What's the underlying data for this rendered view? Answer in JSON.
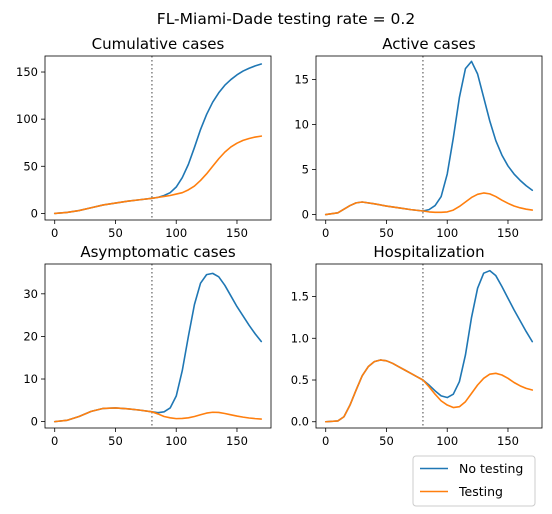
{
  "suptitle": "FL-Miami-Dade testing rate = 0.2",
  "colors": {
    "no_testing": "#1f77b4",
    "testing": "#ff7f0e",
    "vline": "#808080"
  },
  "legend": {
    "placement": "lower-right",
    "entries": [
      "No testing",
      "Testing"
    ]
  },
  "chart_data": [
    {
      "type": "line",
      "title": "Cumulative cases",
      "xlim": [
        -8,
        178
      ],
      "ylim": [
        -7,
        167
      ],
      "xticks": [
        0,
        50,
        100,
        150
      ],
      "yticks": [
        0,
        50,
        100,
        150
      ],
      "xtick_labels": [
        "0",
        "50",
        "100",
        "150"
      ],
      "ytick_labels": [
        "0",
        "50",
        "100",
        "150"
      ],
      "vline_x": 80,
      "x": [
        0,
        10,
        20,
        30,
        40,
        50,
        60,
        70,
        80,
        85,
        90,
        95,
        100,
        105,
        110,
        115,
        120,
        125,
        130,
        135,
        140,
        145,
        150,
        155,
        160,
        165,
        170
      ],
      "series": [
        {
          "name": "No testing",
          "values": [
            0,
            1,
            3,
            6,
            9,
            11,
            13,
            14.5,
            16,
            17,
            19,
            22,
            28,
            38,
            52,
            70,
            89,
            105,
            118,
            128,
            136,
            142,
            147,
            151,
            154,
            156.5,
            158.5
          ]
        },
        {
          "name": "Testing",
          "values": [
            0,
            1,
            3,
            6,
            9,
            11,
            13,
            14.5,
            16,
            17,
            18,
            19,
            20.5,
            22,
            25,
            29,
            35,
            42,
            50,
            58,
            65,
            70.5,
            74.5,
            77.5,
            79.5,
            81,
            82
          ]
        }
      ]
    },
    {
      "type": "line",
      "title": "Active cases",
      "xlim": [
        -8,
        178
      ],
      "ylim": [
        -0.6,
        17.6
      ],
      "xticks": [
        0,
        50,
        100,
        150
      ],
      "yticks": [
        0,
        5,
        10,
        15
      ],
      "xtick_labels": [
        "0",
        "50",
        "100",
        "150"
      ],
      "ytick_labels": [
        "0",
        "5",
        "10",
        "15"
      ],
      "vline_x": 80,
      "x": [
        0,
        10,
        20,
        25,
        30,
        40,
        50,
        60,
        70,
        80,
        85,
        90,
        95,
        100,
        105,
        110,
        115,
        120,
        125,
        130,
        135,
        140,
        145,
        150,
        155,
        160,
        165,
        170
      ],
      "series": [
        {
          "name": "No testing",
          "values": [
            0,
            0.2,
            1.0,
            1.3,
            1.4,
            1.2,
            0.95,
            0.75,
            0.55,
            0.4,
            0.55,
            1.0,
            2.0,
            4.5,
            8.5,
            13,
            16.2,
            17,
            15.6,
            13,
            10.4,
            8.2,
            6.6,
            5.4,
            4.5,
            3.8,
            3.2,
            2.7
          ]
        },
        {
          "name": "Testing",
          "values": [
            0,
            0.2,
            1.0,
            1.3,
            1.4,
            1.2,
            0.95,
            0.75,
            0.55,
            0.4,
            0.3,
            0.25,
            0.25,
            0.3,
            0.5,
            0.9,
            1.4,
            1.9,
            2.25,
            2.4,
            2.3,
            2.0,
            1.6,
            1.25,
            0.95,
            0.75,
            0.6,
            0.5
          ]
        }
      ]
    },
    {
      "type": "line",
      "title": "Asymptomatic cases",
      "xlim": [
        -8,
        178
      ],
      "ylim": [
        -1.5,
        37
      ],
      "xticks": [
        0,
        50,
        100,
        150
      ],
      "yticks": [
        0,
        10,
        20,
        30
      ],
      "xtick_labels": [
        "0",
        "50",
        "100",
        "150"
      ],
      "ytick_labels": [
        "0",
        "10",
        "20",
        "30"
      ],
      "vline_x": 80,
      "x": [
        0,
        10,
        20,
        30,
        40,
        50,
        60,
        70,
        80,
        85,
        90,
        95,
        100,
        105,
        110,
        115,
        120,
        125,
        130,
        135,
        140,
        145,
        150,
        155,
        160,
        165,
        170
      ],
      "series": [
        {
          "name": "No testing",
          "values": [
            0,
            0.3,
            1.2,
            2.4,
            3.1,
            3.2,
            3.0,
            2.7,
            2.3,
            2.1,
            2.3,
            3.2,
            6.0,
            12,
            20,
            27.5,
            32.5,
            34.5,
            34.8,
            34,
            32,
            29.5,
            27,
            24.8,
            22.6,
            20.6,
            18.8
          ]
        },
        {
          "name": "Testing",
          "values": [
            0,
            0.3,
            1.2,
            2.4,
            3.1,
            3.2,
            3.0,
            2.7,
            2.3,
            1.8,
            1.2,
            0.9,
            0.7,
            0.75,
            0.9,
            1.2,
            1.6,
            2.0,
            2.2,
            2.15,
            1.9,
            1.6,
            1.3,
            1.05,
            0.85,
            0.7,
            0.6
          ]
        }
      ]
    },
    {
      "type": "line",
      "title": "Hospitalization",
      "xlim": [
        -8,
        178
      ],
      "ylim": [
        -0.075,
        1.89
      ],
      "xticks": [
        0,
        50,
        100,
        150
      ],
      "yticks": [
        0,
        0.5,
        1.0,
        1.5
      ],
      "xtick_labels": [
        "0",
        "50",
        "100",
        "150"
      ],
      "ytick_labels": [
        "0.0",
        "0.5",
        "1.0",
        "1.5"
      ],
      "vline_x": 80,
      "x": [
        0,
        10,
        15,
        20,
        25,
        30,
        35,
        40,
        45,
        50,
        55,
        60,
        65,
        70,
        75,
        80,
        85,
        90,
        95,
        100,
        105,
        110,
        115,
        120,
        125,
        130,
        135,
        140,
        145,
        150,
        155,
        160,
        165,
        170
      ],
      "series": [
        {
          "name": "No testing",
          "values": [
            0,
            0.01,
            0.06,
            0.2,
            0.38,
            0.55,
            0.66,
            0.72,
            0.74,
            0.73,
            0.7,
            0.66,
            0.62,
            0.58,
            0.54,
            0.5,
            0.44,
            0.37,
            0.31,
            0.29,
            0.33,
            0.48,
            0.8,
            1.25,
            1.6,
            1.78,
            1.81,
            1.75,
            1.62,
            1.48,
            1.34,
            1.21,
            1.08,
            0.96
          ]
        },
        {
          "name": "Testing",
          "values": [
            0,
            0.01,
            0.06,
            0.2,
            0.38,
            0.55,
            0.66,
            0.72,
            0.74,
            0.73,
            0.7,
            0.66,
            0.62,
            0.58,
            0.54,
            0.5,
            0.42,
            0.33,
            0.25,
            0.2,
            0.17,
            0.18,
            0.24,
            0.34,
            0.44,
            0.52,
            0.57,
            0.58,
            0.56,
            0.52,
            0.47,
            0.43,
            0.4,
            0.38
          ]
        }
      ]
    }
  ]
}
